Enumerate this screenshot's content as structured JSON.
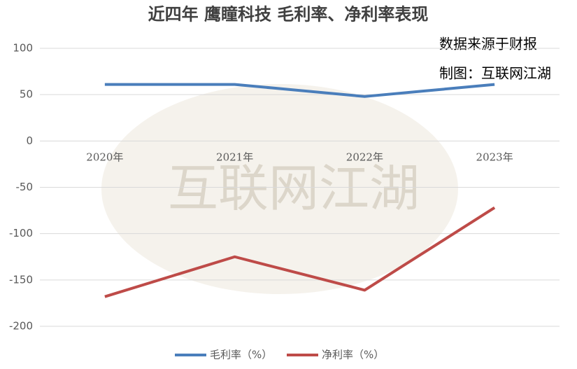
{
  "chart_data": {
    "type": "line",
    "title": "近四年 鹰瞳科技 毛利率、净利率表现",
    "annotations": [
      "数据来源于财报",
      "制图：互联网江湖"
    ],
    "watermark": "互联网江湖",
    "categories": [
      "2020年",
      "2021年",
      "2022年",
      "2023年"
    ],
    "series": [
      {
        "name": "毛利率（%）",
        "color": "#4a7ebb",
        "values": [
          61,
          61,
          48,
          61
        ]
      },
      {
        "name": "净利率（%）",
        "color": "#be4b48",
        "values": [
          -168,
          -125,
          -161,
          -72
        ]
      }
    ],
    "ylim": [
      -200,
      100
    ],
    "yticks": [
      -200,
      -150,
      -100,
      -50,
      0,
      50,
      100
    ],
    "grid": true,
    "legend": "bottom"
  }
}
